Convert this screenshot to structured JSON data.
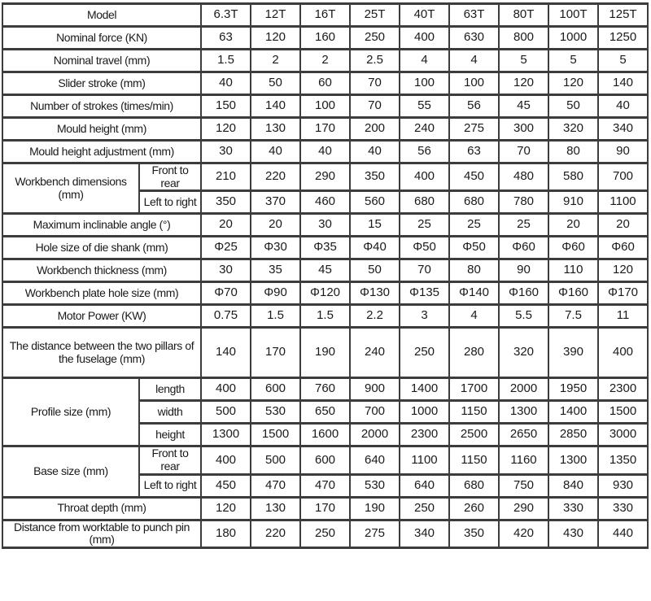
{
  "colors": {
    "background": "#ffffff",
    "border": "#3c3c3c",
    "text": "#1a1a1a"
  },
  "chart_data": {
    "type": "table",
    "rows": [
      {
        "label": "Model",
        "values": [
          "6.3T",
          "12T",
          "16T",
          "25T",
          "40T",
          "63T",
          "80T",
          "100T",
          "125T"
        ]
      },
      {
        "label": "Nominal force (KN)",
        "values": [
          "63",
          "120",
          "160",
          "250",
          "400",
          "630",
          "800",
          "1000",
          "1250"
        ]
      },
      {
        "label": "Nominal travel (mm)",
        "values": [
          "1.5",
          "2",
          "2",
          "2.5",
          "4",
          "4",
          "5",
          "5",
          "5"
        ]
      },
      {
        "label": "Slider stroke (mm)",
        "values": [
          "40",
          "50",
          "60",
          "70",
          "100",
          "100",
          "120",
          "120",
          "140"
        ]
      },
      {
        "label": "Number of strokes (times/min)",
        "values": [
          "150",
          "140",
          "100",
          "70",
          "55",
          "56",
          "45",
          "50",
          "40"
        ]
      },
      {
        "label": "Mould height (mm)",
        "values": [
          "120",
          "130",
          "170",
          "200",
          "240",
          "275",
          "300",
          "320",
          "340"
        ]
      },
      {
        "label": "Mould height adjustment (mm)",
        "values": [
          "30",
          "40",
          "40",
          "40",
          "56",
          "63",
          "70",
          "80",
          "90"
        ]
      },
      {
        "label": "Workbench dimensions (mm)",
        "subrows": [
          {
            "label": "Front to rear",
            "values": [
              "210",
              "220",
              "290",
              "350",
              "400",
              "450",
              "480",
              "580",
              "700"
            ]
          },
          {
            "label": "Left to right",
            "values": [
              "350",
              "370",
              "460",
              "560",
              "680",
              "680",
              "780",
              "910",
              "1100"
            ]
          }
        ]
      },
      {
        "label": "Maximum inclinable angle (°)",
        "values": [
          "20",
          "20",
          "30",
          "15",
          "25",
          "25",
          "25",
          "20",
          "20"
        ]
      },
      {
        "label": "Hole size of die shank (mm)",
        "values": [
          "Φ25",
          "Φ30",
          "Φ35",
          "Φ40",
          "Φ50",
          "Φ50",
          "Φ60",
          "Φ60",
          "Φ60"
        ]
      },
      {
        "label": "Workbench thickness (mm)",
        "values": [
          "30",
          "35",
          "45",
          "50",
          "70",
          "80",
          "90",
          "110",
          "120"
        ]
      },
      {
        "label": "Workbench plate hole size (mm)",
        "values": [
          "Φ70",
          "Φ90",
          "Φ120",
          "Φ130",
          "Φ135",
          "Φ140",
          "Φ160",
          "Φ160",
          "Φ170"
        ]
      },
      {
        "label": "Motor Power (KW)",
        "values": [
          "0.75",
          "1.5",
          "1.5",
          "2.2",
          "3",
          "4",
          "5.5",
          "7.5",
          "11"
        ]
      },
      {
        "label": "The distance between the two pillars of the fuselage (mm)",
        "tall": true,
        "values": [
          "140",
          "170",
          "190",
          "240",
          "250",
          "280",
          "320",
          "390",
          "400"
        ]
      },
      {
        "label": "Profile size (mm)",
        "subrows": [
          {
            "label": "length",
            "values": [
              "400",
              "600",
              "760",
              "900",
              "1400",
              "1700",
              "2000",
              "1950",
              "2300"
            ]
          },
          {
            "label": "width",
            "values": [
              "500",
              "530",
              "650",
              "700",
              "1000",
              "1150",
              "1300",
              "1400",
              "1500"
            ]
          },
          {
            "label": "height",
            "values": [
              "1300",
              "1500",
              "1600",
              "2000",
              "2300",
              "2500",
              "2650",
              "2850",
              "3000"
            ]
          }
        ]
      },
      {
        "label": "Base size (mm)",
        "subrows": [
          {
            "label": "Front to rear",
            "values": [
              "400",
              "500",
              "600",
              "640",
              "1100",
              "1150",
              "1160",
              "1300",
              "1350"
            ]
          },
          {
            "label": "Left to right",
            "values": [
              "450",
              "470",
              "470",
              "530",
              "640",
              "680",
              "750",
              "840",
              "930"
            ]
          }
        ]
      },
      {
        "label": "Throat depth (mm)",
        "values": [
          "120",
          "130",
          "170",
          "190",
          "250",
          "260",
          "290",
          "330",
          "330"
        ]
      },
      {
        "label": "Distance from worktable to punch pin (mm)",
        "values": [
          "180",
          "220",
          "250",
          "275",
          "340",
          "350",
          "420",
          "430",
          "440"
        ]
      }
    ]
  }
}
